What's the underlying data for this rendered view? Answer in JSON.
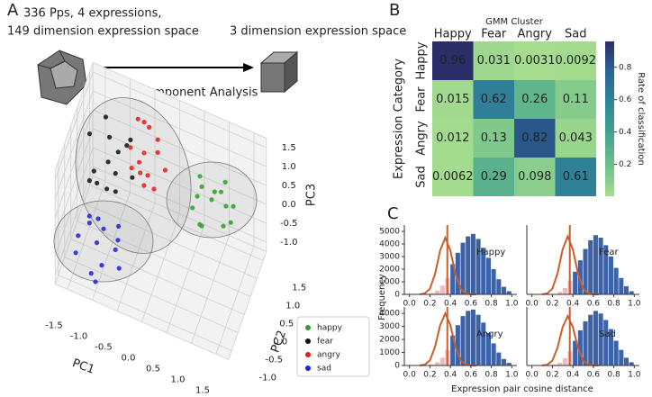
{
  "panel_labels": [
    "A",
    "B",
    "C"
  ],
  "diagram": {
    "source_text": [
      "336 Pps, 4 expressions,",
      "149 dimension expression space"
    ],
    "target_text": "3 dimension expression space",
    "method": "Principal Component Analysis"
  },
  "panel_c": {
    "xlabel": "Expression pair cosine distance",
    "ylabel": "Frequency"
  },
  "chart_data": [
    {
      "type": "scatter3d",
      "xlabel": "PC1",
      "ylabel": "PC2",
      "zlabel": "PC3",
      "xlim": [
        -1.75,
        1.75
      ],
      "ylim": [
        -1.25,
        1.75
      ],
      "zlim": [
        -1.25,
        1.75
      ],
      "xticks": [
        -1.5,
        {
          "value": -1.0,
          "label": "-1.0"
        },
        -0.5,
        {
          "value": 0.0,
          "label": "0.0"
        },
        0.5,
        {
          "value": 1.0,
          "label": "1.0"
        },
        1.5
      ],
      "yticks": [
        {
          "value": -1.0,
          "label": "-1.0"
        },
        -0.5,
        {
          "value": 0.0,
          "label": "0.0"
        },
        0.5,
        {
          "value": 1.0,
          "label": "1.0"
        },
        1.5
      ],
      "zticks": [
        {
          "value": -1.0,
          "label": "-1.0"
        },
        -0.5,
        {
          "value": 0.0,
          "label": "0.0"
        },
        0.5,
        {
          "value": 1.0,
          "label": "1.0"
        },
        1.5
      ],
      "series": [
        {
          "name": "happy",
          "color": "#2ca02c",
          "x": [
            0.9,
            1.2,
            0.6,
            1.1,
            0.7,
            1.3,
            0.8,
            1.0,
            0.5,
            1.4,
            0.95,
            0.75,
            1.15,
            0.65
          ],
          "y": [
            0.75,
            0.5,
            1.0,
            1.1,
            0.4,
            0.9,
            0.2,
            0.6,
            0.8,
            0.3,
            1.3,
            0.55,
            0.85,
            0.95
          ],
          "z": [
            0.59,
            0.3,
            0.8,
            0.2,
            0.9,
            0.5,
            0.4,
            1.0,
            0.1,
            0.7,
            0.3,
            0.0,
            1.1,
            0.6
          ]
        },
        {
          "name": "fear",
          "color": "#111111",
          "x": [
            -1.1,
            -1.4,
            -0.8,
            -1.2,
            -0.9,
            -1.5,
            -1.0,
            -0.7,
            -1.3,
            -1.05,
            -0.85,
            -1.25,
            -0.6,
            -1.45
          ],
          "y": [
            0.4,
            0.1,
            0.7,
            0.9,
            0.2,
            0.5,
            -0.1,
            0.6,
            0.3,
            1.0,
            0.0,
            0.8,
            0.35,
            0.65
          ],
          "z": [
            0.78,
            0.4,
            1.1,
            0.9,
            0.3,
            1.2,
            0.6,
            1.4,
            0.2,
            0.5,
            1.0,
            1.5,
            0.7,
            0.1
          ]
        },
        {
          "name": "angry",
          "color": "#e41a1c",
          "x": [
            -0.4,
            -0.6,
            -0.2,
            -0.5,
            -0.3,
            -0.7,
            -0.1,
            -0.45,
            -0.25,
            -0.55,
            -0.35,
            0.0,
            -0.65,
            -0.15
          ],
          "y": [
            0.5,
            0.3,
            0.8,
            0.9,
            0.1,
            0.6,
            0.4,
            1.1,
            0.2,
            0.7,
            0.0,
            0.6,
            1.0,
            0.3
          ],
          "z": [
            1.32,
            1.0,
            1.5,
            1.7,
            0.9,
            1.2,
            1.6,
            1.4,
            1.1,
            0.8,
            1.3,
            1.0,
            1.6,
            0.7
          ]
        },
        {
          "name": "sad",
          "color": "#1f1fe0",
          "x": [
            -1.1,
            -1.4,
            -0.8,
            -1.3,
            -0.9,
            -1.5,
            -0.7,
            -1.2,
            -1.0,
            -0.6,
            -1.35,
            -0.95,
            -1.15,
            -0.75
          ],
          "y": [
            -0.5,
            -0.8,
            -0.2,
            -0.3,
            -0.9,
            -0.6,
            -0.4,
            0.0,
            -1.0,
            -0.7,
            -0.1,
            -0.55,
            -0.75,
            -0.15
          ],
          "z": [
            -0.5,
            -0.2,
            -0.8,
            -0.1,
            -0.6,
            -0.9,
            -0.3,
            -0.4,
            -1.0,
            -0.7,
            -0.5,
            0.0,
            -1.1,
            -0.2
          ]
        }
      ]
    },
    {
      "type": "heatmap",
      "title": "GMM Cluster",
      "ylabel": "Expression Category",
      "colorbar_label": "Rate of classification",
      "columns": [
        "Happy",
        "Fear",
        "Angry",
        "Sad"
      ],
      "rows": [
        "Happy",
        "Fear",
        "Angry",
        "Sad"
      ],
      "values": [
        [
          0.96,
          0.031,
          0.0031,
          0.0092
        ],
        [
          0.015,
          0.62,
          0.26,
          0.11
        ],
        [
          0.012,
          0.13,
          0.82,
          0.043
        ],
        [
          0.0062,
          0.29,
          0.098,
          0.61
        ]
      ],
      "vlim": [
        0.0031,
        0.96
      ],
      "colorbar_ticks": [
        0.2,
        0.4,
        0.6,
        0.8
      ],
      "colormap": [
        "#a5dc8e",
        "#6cc08b",
        "#45a38f",
        "#2f8798",
        "#2a6595",
        "#2c2e6a"
      ]
    },
    {
      "type": "histogram",
      "title": "Happy",
      "bins": [
        0,
        0.05,
        0.1,
        0.15,
        0.2,
        0.25,
        0.3,
        0.35,
        0.4,
        0.45,
        0.5,
        0.55,
        0.6,
        0.65,
        0.7,
        0.75,
        0.8,
        0.85,
        0.9,
        0.95,
        1.0
      ],
      "xlim": [
        -0.05,
        1.05
      ],
      "ylim": [
        0,
        5500
      ],
      "xticks": [
        {
          "value": 0.0,
          "label": "0.0"
        },
        0.2,
        0.4,
        0.6,
        0.8,
        {
          "value": 1.0,
          "label": "1.0"
        }
      ],
      "yticks": [
        0,
        1000,
        2000,
        3000,
        4000,
        5000
      ],
      "series": [
        {
          "color": "#f4b8bf",
          "values": [
            0,
            0,
            0,
            0,
            100,
            300,
            700,
            1300,
            0,
            0,
            0,
            0,
            0,
            0,
            0,
            0,
            0,
            0,
            0,
            0
          ]
        },
        {
          "color": "#3c63a8",
          "values": [
            0,
            0,
            0,
            0,
            0,
            0,
            0,
            0,
            2400,
            3300,
            4100,
            4600,
            4800,
            4400,
            3700,
            2900,
            2000,
            1200,
            600,
            250
          ]
        }
      ],
      "curve": {
        "color": "#cd5c2c",
        "x": [
          0.1,
          0.15,
          0.2,
          0.25,
          0.3,
          0.35,
          0.4,
          0.45,
          0.5,
          0.55,
          0.6,
          0.65
        ],
        "values": [
          5,
          76,
          450,
          1620,
          3490,
          4500,
          3490,
          1620,
          450,
          76,
          8,
          0
        ]
      },
      "threshold": 0.37
    },
    {
      "type": "histogram",
      "title": "Fear",
      "bins": [
        0,
        0.05,
        0.1,
        0.15,
        0.2,
        0.25,
        0.3,
        0.35,
        0.4,
        0.45,
        0.5,
        0.55,
        0.6,
        0.65,
        0.7,
        0.75,
        0.8,
        0.85,
        0.9,
        0.95,
        1.0
      ],
      "xlim": [
        -0.05,
        1.05
      ],
      "ylim": [
        0,
        5500
      ],
      "xticks": [
        {
          "value": 0.0,
          "label": "0.0"
        },
        0.2,
        0.4,
        0.6,
        0.8,
        {
          "value": 1.0,
          "label": "1.0"
        }
      ],
      "series": [
        {
          "color": "#f4b8bf",
          "values": [
            0,
            0,
            0,
            0,
            50,
            200,
            500,
            1100,
            0,
            0,
            0,
            0,
            0,
            0,
            0,
            0,
            0,
            0,
            0,
            0
          ]
        },
        {
          "color": "#3c63a8",
          "values": [
            0,
            0,
            0,
            0,
            0,
            0,
            0,
            0,
            1800,
            2700,
            3600,
            4300,
            4700,
            4500,
            3900,
            3000,
            2100,
            1300,
            650,
            250
          ]
        }
      ],
      "curve": {
        "color": "#cd5c2c",
        "x": [
          0.1,
          0.15,
          0.2,
          0.25,
          0.3,
          0.35,
          0.4,
          0.45,
          0.5,
          0.55,
          0.6,
          0.65
        ],
        "values": [
          5,
          78,
          460,
          1660,
          3570,
          4600,
          3570,
          1660,
          460,
          78,
          8,
          0
        ]
      },
      "threshold": 0.37
    },
    {
      "type": "histogram",
      "title": "Angry",
      "bins": [
        0,
        0.05,
        0.1,
        0.15,
        0.2,
        0.25,
        0.3,
        0.35,
        0.4,
        0.45,
        0.5,
        0.55,
        0.6,
        0.65,
        0.7,
        0.75,
        0.8,
        0.85,
        0.9,
        0.95,
        1.0
      ],
      "xlim": [
        -0.05,
        1.05
      ],
      "ylim": [
        0,
        4500
      ],
      "xticks": [
        {
          "value": 0.0,
          "label": "0.0"
        },
        0.2,
        0.4,
        0.6,
        0.8,
        {
          "value": 1.0,
          "label": "1.0"
        }
      ],
      "yticks": [
        0,
        1000,
        2000,
        3000,
        4000
      ],
      "series": [
        {
          "color": "#f4b8bf",
          "values": [
            0,
            0,
            0,
            0,
            80,
            250,
            600,
            1200,
            0,
            0,
            0,
            0,
            0,
            0,
            0,
            0,
            0,
            0,
            0,
            0
          ]
        },
        {
          "color": "#3c63a8",
          "values": [
            0,
            0,
            0,
            0,
            0,
            0,
            0,
            0,
            2300,
            3100,
            3800,
            4200,
            4300,
            3900,
            3300,
            2500,
            1700,
            1000,
            500,
            200
          ]
        }
      ],
      "curve": {
        "color": "#cd5c2c",
        "x": [
          0.1,
          0.15,
          0.2,
          0.25,
          0.3,
          0.35,
          0.4,
          0.45,
          0.5,
          0.55,
          0.6,
          0.65
        ],
        "values": [
          4,
          68,
          400,
          1440,
          3100,
          4000,
          3100,
          1440,
          400,
          68,
          7,
          0
        ]
      },
      "threshold": 0.37
    },
    {
      "type": "histogram",
      "title": "Sad",
      "bins": [
        0,
        0.05,
        0.1,
        0.15,
        0.2,
        0.25,
        0.3,
        0.35,
        0.4,
        0.45,
        0.5,
        0.55,
        0.6,
        0.65,
        0.7,
        0.75,
        0.8,
        0.85,
        0.9,
        0.95,
        1.0
      ],
      "xlim": [
        -0.05,
        1.05
      ],
      "ylim": [
        0,
        4500
      ],
      "xticks": [
        {
          "value": 0.0,
          "label": "0.0"
        },
        0.2,
        0.4,
        0.6,
        0.8,
        {
          "value": 1.0,
          "label": "1.0"
        }
      ],
      "series": [
        {
          "color": "#f4b8bf",
          "values": [
            0,
            0,
            0,
            0,
            60,
            220,
            550,
            1100,
            0,
            0,
            0,
            0,
            0,
            0,
            0,
            0,
            0,
            0,
            0,
            0
          ]
        },
        {
          "color": "#3c63a8",
          "values": [
            0,
            0,
            0,
            0,
            0,
            0,
            0,
            0,
            1900,
            2700,
            3400,
            3900,
            4200,
            4000,
            3500,
            2800,
            1900,
            1200,
            600,
            250
          ]
        }
      ],
      "curve": {
        "color": "#cd5c2c",
        "x": [
          0.1,
          0.15,
          0.2,
          0.25,
          0.3,
          0.35,
          0.4,
          0.45,
          0.5,
          0.55,
          0.6,
          0.65
        ],
        "values": [
          4,
          64,
          380,
          1370,
          2950,
          3800,
          2950,
          1370,
          380,
          64,
          7,
          0
        ]
      },
      "threshold": 0.37
    }
  ]
}
